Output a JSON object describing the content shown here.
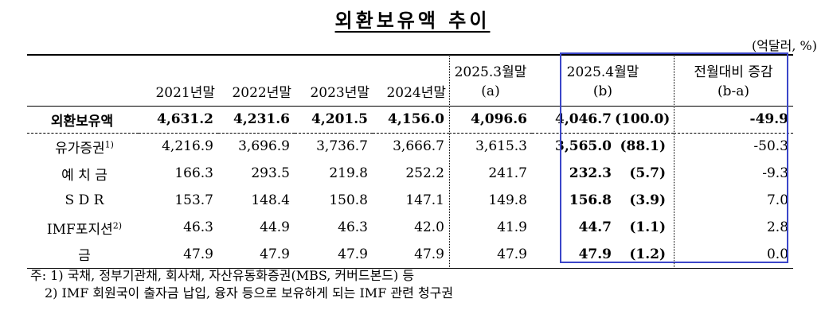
{
  "title": "외환보유액 추이",
  "unit": "(억달러, %)",
  "headers": {
    "c1": "2021년말",
    "c2": "2022년말",
    "c3": "2023년말",
    "c4": "2024년말",
    "c5_line1": "2025.3월말",
    "c5_line2": "(a)",
    "c6_line1": "2025.4월말",
    "c6_line2": "(b)",
    "c8_line1": "전월대비 증감",
    "c8_line2": "(b-a)"
  },
  "rows": [
    {
      "label": "외환보유액",
      "sup": "",
      "v2021": "4,631.2",
      "v2022": "4,231.6",
      "v2023": "4,201.5",
      "v2024": "4,156.0",
      "v2025_3": "4,096.6",
      "v2025_4": "4,046.7",
      "share": "(100.0)",
      "diff": "-49.9"
    },
    {
      "label": "유가증권",
      "sup": "1)",
      "v2021": "4,216.9",
      "v2022": "3,696.9",
      "v2023": "3,736.7",
      "v2024": "3,666.7",
      "v2025_3": "3,615.3",
      "v2025_4": "3,565.0",
      "share": "(88.1)",
      "diff": "-50.3"
    },
    {
      "label": "예 치 금",
      "sup": "",
      "v2021": "166.3",
      "v2022": "293.5",
      "v2023": "219.8",
      "v2024": "252.2",
      "v2025_3": "241.7",
      "v2025_4": "232.3",
      "share": "(5.7)",
      "diff": "-9.3"
    },
    {
      "label": "S D R",
      "sup": "",
      "v2021": "153.7",
      "v2022": "148.4",
      "v2023": "150.8",
      "v2024": "147.1",
      "v2025_3": "149.8",
      "v2025_4": "156.8",
      "share": "(3.9)",
      "diff": "7.0"
    },
    {
      "label": "IMF포지션",
      "sup": "2)",
      "v2021": "46.3",
      "v2022": "44.9",
      "v2023": "46.3",
      "v2024": "42.0",
      "v2025_3": "41.9",
      "v2025_4": "44.7",
      "share": "(1.1)",
      "diff": "2.8"
    },
    {
      "label": "금",
      "sup": "",
      "v2021": "47.9",
      "v2022": "47.9",
      "v2023": "47.9",
      "v2024": "47.9",
      "v2025_3": "47.9",
      "v2025_4": "47.9",
      "share": "(1.2)",
      "diff": "0.0"
    }
  ],
  "notes": {
    "n1": "주: 1) 국채, 정부기관채, 회사채, 자산유동화증권(MBS, 커버드본드) 등",
    "n2": "2) IMF 회원국이 출자금 납입, 융자 등으로 보유하게 되는 IMF 관련 청구권"
  },
  "highlight_color": "#3b46c9"
}
